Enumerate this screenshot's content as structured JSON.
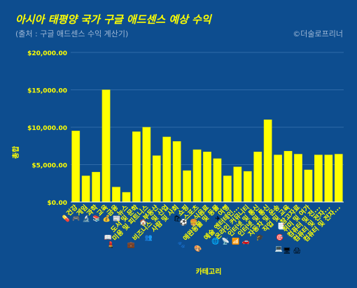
{
  "chart_data": {
    "type": "bar",
    "title": "아시아 태평양 국가 구글 애드센스 예상 수익",
    "subtitle": "(출처 : 구글 애드센스 수익 계산기)",
    "credit": "©더술로프리너",
    "xlabel": "카테고리",
    "ylabel": "총합",
    "ylim": [
      0,
      20000
    ],
    "yticks": [
      "$0.00",
      "$5,000.00",
      "$10,000.00",
      "$15,000.00",
      "$20,000.00"
    ],
    "grid": true,
    "categories": [
      "건강",
      "게임",
      "과학",
      "교육",
      "금융",
      "뉴스",
      "도서 및 문학",
      "미용 및 피트니스",
      "부동산",
      "비즈니스 및 산업",
      "사람 및 사회",
      "쇼핑",
      "스포츠",
      "식음료",
      "애완동물 및 동물",
      "여행",
      "예술 엔터테인먼트",
      "온라인 커뮤니티",
      "인터넷 및 통신",
      "인터넷 및 통신",
      "자동차 및 운송",
      "직업 및 교육",
      "참고자료",
      "취미 및 여가",
      "컴퓨터 및 전자",
      "컴퓨터 및 전자제품",
      "컴퓨터 및 전자제품"
    ],
    "tick_labels": [
      "건강",
      "게임",
      "과학",
      "교육",
      "금융",
      "뉴스",
      "도서 및 문학",
      "미용 및 피트니스",
      "부동산",
      "비즈니스 및 산업",
      "사람 및 사회",
      "쇼핑",
      "스포츠",
      "식음료",
      "애완동물 및 동물",
      "여행",
      "예술 엔터테인...",
      "온라인 커뮤니티",
      "인터넷 및 통신",
      "인터넷 및 통신",
      "자동차 및 운송",
      "직업 및 교육",
      "참고자료",
      "취미 및 여가",
      "컴퓨터 및 전...",
      "컴퓨터 및 전자...",
      "컴퓨터 및 전자..."
    ],
    "icons": [
      "💊",
      "🎮",
      "🔬",
      "📚",
      "💰",
      "📰",
      "📖",
      "💄",
      "🏠",
      "💼",
      "👥",
      "🛍",
      "⚽",
      "🍔",
      "🐾",
      "✈",
      "🎨",
      "🌐",
      "📡",
      "📶",
      "🚗",
      "🎓",
      "📑",
      "🎯",
      "💻",
      "🖥",
      "🖨"
    ],
    "values": [
      9500,
      3500,
      4000,
      15000,
      2000,
      1300,
      9400,
      10000,
      6200,
      8700,
      8100,
      4200,
      7000,
      6700,
      5800,
      3500,
      4700,
      4100,
      6700,
      11000,
      6300,
      6800,
      6400,
      4300,
      6300,
      6300,
      6400
    ],
    "colors": {
      "bar": "#ffff00",
      "bar_stroke": "#e0e000",
      "title": "#ffff00",
      "axis_text": "#ffff00",
      "muted_text": "#9fb8d6",
      "grid": "#2f6aa8",
      "background": "#0d4d8f"
    }
  }
}
